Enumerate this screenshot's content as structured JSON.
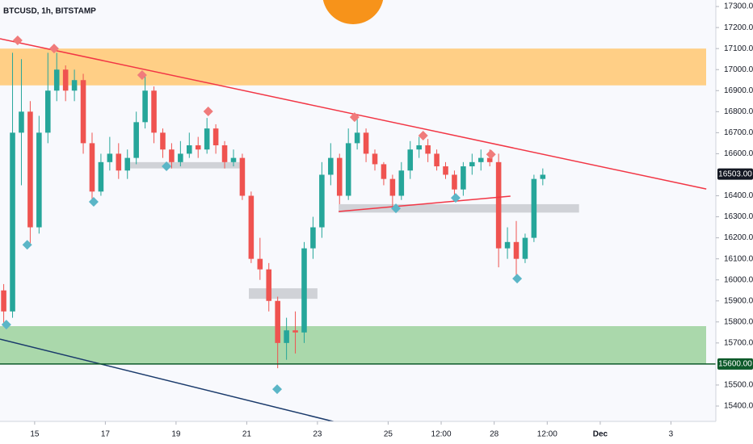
{
  "chart_data": {
    "type": "candlestick",
    "title": "BTCUSD, 1h, BITSTAMP",
    "up_color": "#26a69a",
    "down_color": "#ef5350",
    "x": [
      14.125,
      14.375,
      14.625,
      14.875,
      15.125,
      15.375,
      15.625,
      15.875,
      16.125,
      16.375,
      16.625,
      16.875,
      17.125,
      17.375,
      17.625,
      17.875,
      18.125,
      18.375,
      18.625,
      18.875,
      19.125,
      19.375,
      19.625,
      19.875,
      20.125,
      20.375,
      20.625,
      20.875,
      21.125,
      21.375,
      21.625,
      21.875,
      22.125,
      22.375,
      22.625,
      22.875,
      23.125,
      23.375,
      23.625,
      23.875,
      24.125,
      24.375,
      24.625,
      24.875,
      25.125,
      25.375,
      25.625,
      25.875,
      26.125,
      26.375,
      26.625,
      26.875,
      27.125,
      27.375,
      27.625,
      27.875,
      28.125,
      28.375,
      28.625,
      28.875,
      29.125,
      29.375
    ],
    "open": [
      15950,
      15850,
      16700,
      16800,
      16250,
      16700,
      16900,
      17000,
      16900,
      16950,
      16650,
      16420,
      16560,
      16600,
      16520,
      16580,
      16750,
      16900,
      16700,
      16620,
      16560,
      16600,
      16640,
      16620,
      16720,
      16640,
      16560,
      16580,
      16400,
      16100,
      16050,
      15900,
      15700,
      15760,
      15750,
      16150,
      16250,
      16500,
      16580,
      16400,
      16650,
      16700,
      16600,
      16550,
      16480,
      16400,
      16520,
      16620,
      16640,
      16600,
      16540,
      16500,
      16430,
      16540,
      16560,
      16580,
      16560,
      16150,
      16180,
      16100,
      16200,
      16480
    ],
    "high": [
      15980,
      17080,
      17050,
      16850,
      16780,
      17080,
      17080,
      17020,
      17000,
      16980,
      16700,
      16600,
      16680,
      16650,
      16620,
      16800,
      16980,
      16920,
      16720,
      16650,
      16660,
      16700,
      16680,
      16770,
      16740,
      16660,
      16620,
      16600,
      16420,
      16200,
      16080,
      15920,
      15820,
      15850,
      16180,
      16300,
      16560,
      16650,
      16600,
      16720,
      16780,
      16720,
      16620,
      16560,
      16500,
      16560,
      16660,
      16680,
      16670,
      16620,
      16560,
      16520,
      16560,
      16600,
      16620,
      16620,
      16600,
      16250,
      16280,
      16220,
      16500,
      16530
    ],
    "low": [
      15780,
      15820,
      16450,
      16170,
      16220,
      16650,
      16850,
      16850,
      16850,
      16600,
      16380,
      16400,
      16520,
      16480,
      16480,
      16550,
      16720,
      16650,
      16580,
      16530,
      16540,
      16580,
      16580,
      16600,
      16600,
      16530,
      16540,
      16380,
      16080,
      16000,
      15850,
      15580,
      15620,
      15650,
      15700,
      16100,
      16200,
      16450,
      16360,
      16380,
      16620,
      16560,
      16520,
      16450,
      16340,
      16380,
      16480,
      16580,
      16560,
      16520,
      16480,
      16400,
      16400,
      16500,
      16520,
      16540,
      16060,
      16100,
      16020,
      16080,
      16180,
      16450
    ],
    "close": [
      15850,
      16700,
      16800,
      16250,
      16700,
      16900,
      17000,
      16900,
      16950,
      16650,
      16420,
      16560,
      16600,
      16520,
      16580,
      16750,
      16900,
      16700,
      16620,
      16560,
      16600,
      16640,
      16620,
      16720,
      16640,
      16560,
      16580,
      16400,
      16100,
      16050,
      15900,
      15700,
      15760,
      15750,
      16150,
      16250,
      16500,
      16580,
      16400,
      16650,
      16700,
      16600,
      16550,
      16480,
      16400,
      16520,
      16620,
      16640,
      16600,
      16540,
      16500,
      16430,
      16540,
      16560,
      16580,
      16560,
      16150,
      16180,
      16100,
      16200,
      16480,
      16500
    ],
    "xlim": [
      14.02,
      34.27
    ],
    "xticks": [
      15,
      17,
      19,
      21,
      23,
      25,
      {
        "value": 26.5,
        "label": "12:00"
      },
      28,
      {
        "value": 29.5,
        "label": "12:00"
      },
      {
        "value": 31,
        "label": "Dec"
      },
      {
        "value": 33,
        "label": "3"
      }
    ],
    "ylim": [
      15327,
      17331
    ],
    "yticks": [
      {
        "value": 17300,
        "label": "17300.00"
      },
      {
        "value": 17200,
        "label": "17200.00"
      },
      {
        "value": 17100,
        "label": "17100.00"
      },
      {
        "value": 17000,
        "label": "17000.00"
      },
      {
        "value": 16900,
        "label": "16900.00"
      },
      {
        "value": 16800,
        "label": "16800.00"
      },
      {
        "value": 16700,
        "label": "16700.00"
      },
      {
        "value": 16600,
        "label": "16600.00"
      },
      {
        "value": 16400,
        "label": "16400.00"
      },
      {
        "value": 16300,
        "label": "16300.00"
      },
      {
        "value": 16200,
        "label": "16200.00"
      },
      {
        "value": 16100,
        "label": "16100.00"
      },
      {
        "value": 16000,
        "label": "16000.00"
      },
      {
        "value": 15900,
        "label": "15900.00"
      },
      {
        "value": 15800,
        "label": "15800.00"
      },
      {
        "value": 15700,
        "label": "15700.00"
      },
      {
        "value": 15500,
        "label": "15500.00"
      },
      {
        "value": 15400,
        "label": "15400.00"
      }
    ],
    "zones": [
      {
        "y": [
          16925,
          17100
        ],
        "color": "#ffcc80"
      },
      {
        "y": [
          15600,
          15780
        ],
        "color": "#a5d6a7"
      }
    ],
    "boxes": [
      {
        "x": [
          17.68,
          20.94
        ],
        "y": [
          16530,
          16560
        ],
        "color": "#c9cbd0"
      },
      {
        "x": [
          21.06,
          23.0
        ],
        "y": [
          15910,
          15960
        ],
        "color": "#c9cbd0"
      },
      {
        "x": [
          23.6,
          30.4
        ],
        "y": [
          16320,
          16360
        ],
        "color": "#c9cbd0"
      }
    ],
    "lines": [
      {
        "x": [
          14.02,
          34.0
        ],
        "y": [
          17147,
          16432
        ],
        "color": "#f23645"
      },
      {
        "x": [
          23.6,
          28.46
        ],
        "y": [
          16325,
          16398
        ],
        "color": "#f23645"
      },
      {
        "x": [
          14.02,
          23.73
        ],
        "y": [
          15718,
          15315
        ],
        "color": "#1a3a6b"
      }
    ],
    "markers": [
      {
        "color": "#f07b7b",
        "x": [
          14.52,
          15.55,
          18.04,
          19.91,
          24.05,
          25.99,
          27.91
        ],
        "y": [
          17139,
          17100,
          16974,
          16801,
          16774,
          16686,
          16597
        ]
      },
      {
        "color": "#5bb6c7",
        "x": [
          14.2,
          14.79,
          16.67,
          18.73,
          21.86,
          25.22,
          26.91,
          28.65
        ],
        "y": [
          15787,
          16167,
          16371,
          16540,
          15480,
          16340,
          16390,
          16006
        ]
      }
    ],
    "hline": {
      "value": 15600,
      "label": "15600.00",
      "color": "#0d5a2a"
    },
    "last_price": {
      "value": 16503,
      "label": "16503.00",
      "color": "#131722"
    }
  }
}
